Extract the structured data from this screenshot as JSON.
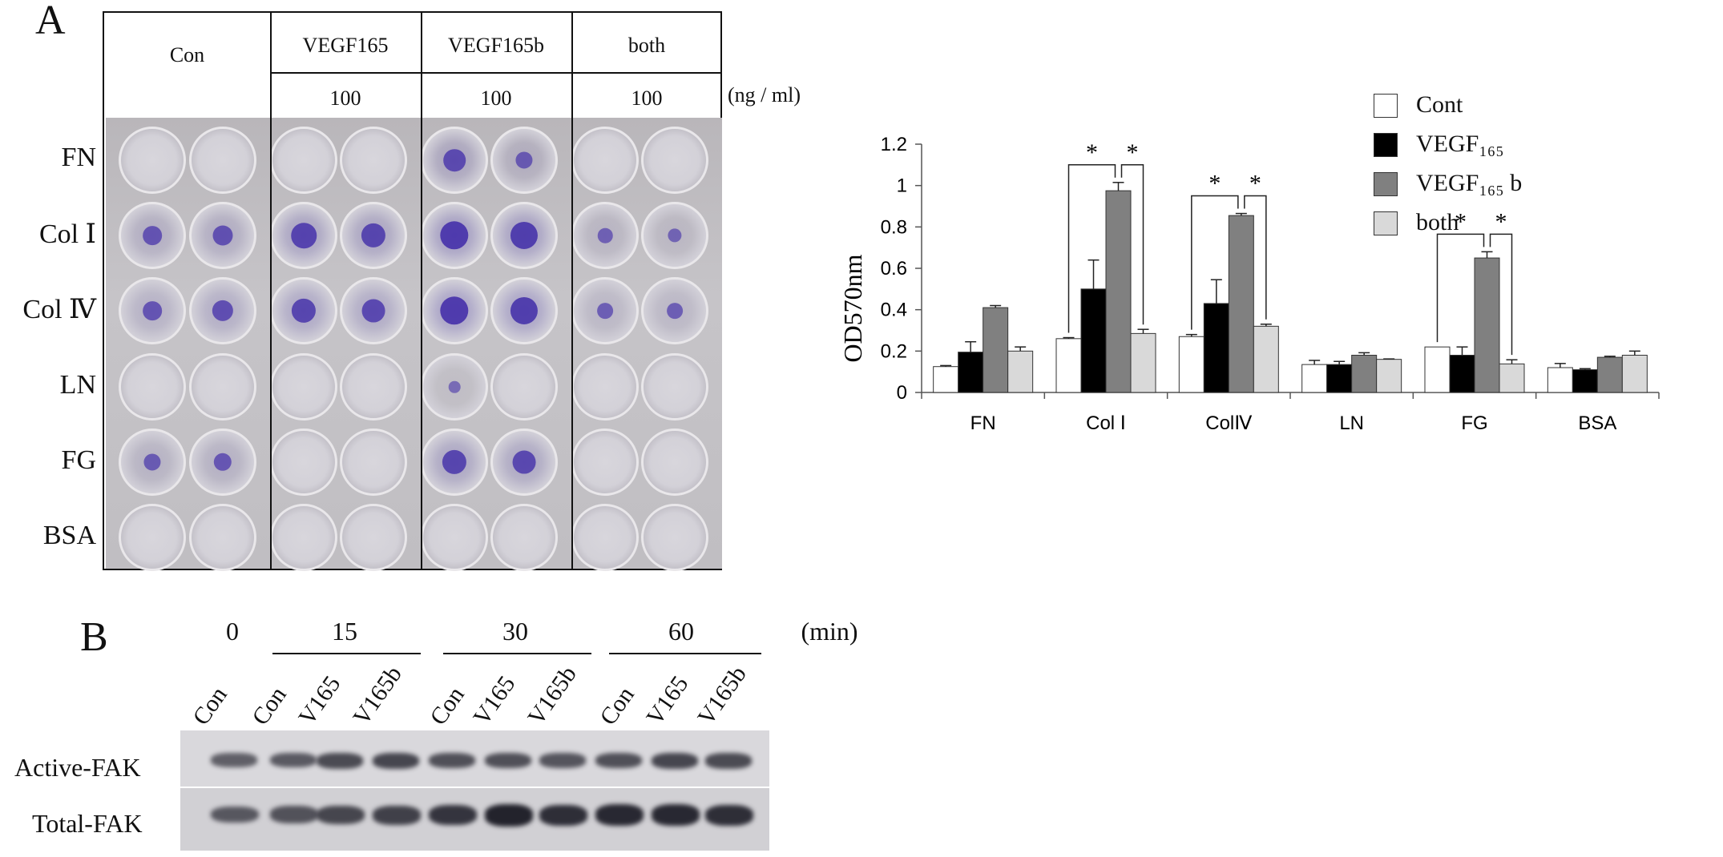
{
  "panel_a": {
    "letter": "A",
    "plate": {
      "col_headers": [
        "Con",
        "VEGF165",
        "VEGF165b",
        "both"
      ],
      "concentrations": [
        "",
        "100",
        "100",
        "100"
      ],
      "units": "(ng / ml)",
      "row_labels": [
        "FN",
        "Col Ⅰ",
        "Col Ⅳ",
        "LN",
        "FG",
        "BSA"
      ]
    }
  },
  "chart_data": {
    "type": "bar",
    "ylabel": "OD570nm",
    "ylim": [
      0,
      1.2
    ],
    "yticks": [
      "0",
      "0.2",
      "0.4",
      "0.6",
      "0.8",
      "1",
      "1.2"
    ],
    "categories": [
      "FN",
      "Col Ⅰ",
      "ColⅣ",
      "LN",
      "FG",
      "BSA"
    ],
    "series": [
      {
        "name": "Cont",
        "color": "#ffffff",
        "values": [
          0.125,
          0.26,
          0.27,
          0.135,
          0.22,
          0.12
        ],
        "errors": [
          0.005,
          0.005,
          0.01,
          0.02,
          0.0,
          0.02
        ]
      },
      {
        "name": "VEGF165",
        "color": "#000000",
        "values": [
          0.195,
          0.5,
          0.43,
          0.135,
          0.18,
          0.11
        ],
        "errors": [
          0.05,
          0.14,
          0.115,
          0.015,
          0.04,
          0.005
        ]
      },
      {
        "name": "VEGF165b",
        "color": "#808080",
        "values": [
          0.41,
          0.975,
          0.855,
          0.18,
          0.65,
          0.17
        ],
        "errors": [
          0.01,
          0.04,
          0.01,
          0.012,
          0.03,
          0.005
        ]
      },
      {
        "name": "both",
        "color": "#d9d9d9",
        "values": [
          0.2,
          0.285,
          0.32,
          0.16,
          0.138,
          0.18
        ],
        "errors": [
          0.02,
          0.02,
          0.01,
          0.002,
          0.02,
          0.02
        ]
      }
    ],
    "legend_labels": [
      "Cont",
      "VEGF₁₆₅",
      "VEGF₁₆₅ b",
      "both"
    ],
    "significance": [
      {
        "category": "Col Ⅰ",
        "marks": [
          "*",
          "*"
        ]
      },
      {
        "category": "ColⅣ",
        "marks": [
          "*",
          "*"
        ]
      },
      {
        "category": "FG",
        "marks": [
          "*",
          "*"
        ]
      }
    ]
  },
  "panel_b": {
    "letter": "B",
    "time_groups": [
      "0",
      "15",
      "30",
      "60"
    ],
    "time_unit": "(min)",
    "lanes": [
      "Con",
      "Con",
      "V165",
      "V165b",
      "Con",
      "V165",
      "V165b",
      "Con",
      "V165",
      "V165b"
    ],
    "rows": [
      "Active-FAK",
      "Total-FAK"
    ],
    "active_intensity": [
      0.55,
      0.6,
      0.75,
      0.8,
      0.7,
      0.7,
      0.65,
      0.7,
      0.8,
      0.75
    ],
    "total_intensity": [
      0.55,
      0.6,
      0.7,
      0.75,
      0.85,
      1.0,
      0.9,
      0.95,
      0.95,
      0.9
    ]
  }
}
